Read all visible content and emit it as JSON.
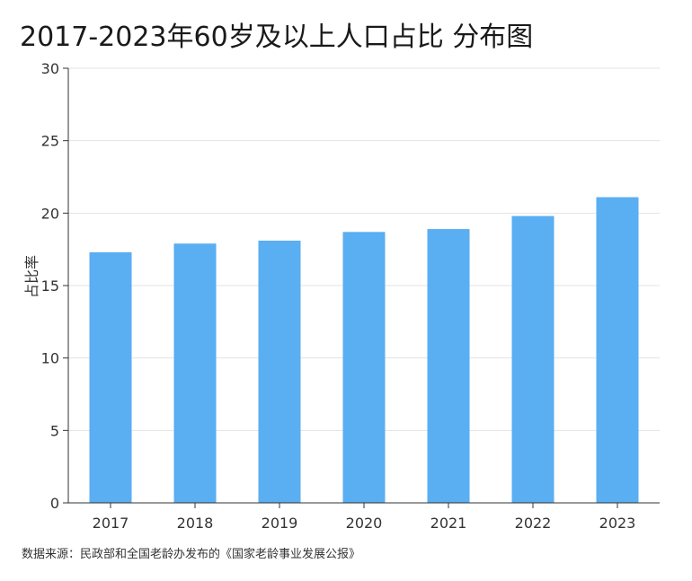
{
  "chart_data": {
    "type": "bar",
    "title": "2017-2023年60岁及以上人口占比 分布图",
    "xlabel": "",
    "ylabel": "占比率",
    "categories": [
      "2017",
      "2018",
      "2019",
      "2020",
      "2021",
      "2022",
      "2023"
    ],
    "values": [
      17.3,
      17.9,
      18.1,
      18.7,
      18.9,
      19.8,
      21.1
    ],
    "ylim": [
      0,
      30
    ],
    "yticks": [
      0,
      5,
      10,
      15,
      20,
      25,
      30
    ],
    "grid": true,
    "legend": "none",
    "bar_color": "#5aaef2",
    "source": "数据来源：民政部和全国老龄办发布的《国家老龄事业发展公报》"
  }
}
